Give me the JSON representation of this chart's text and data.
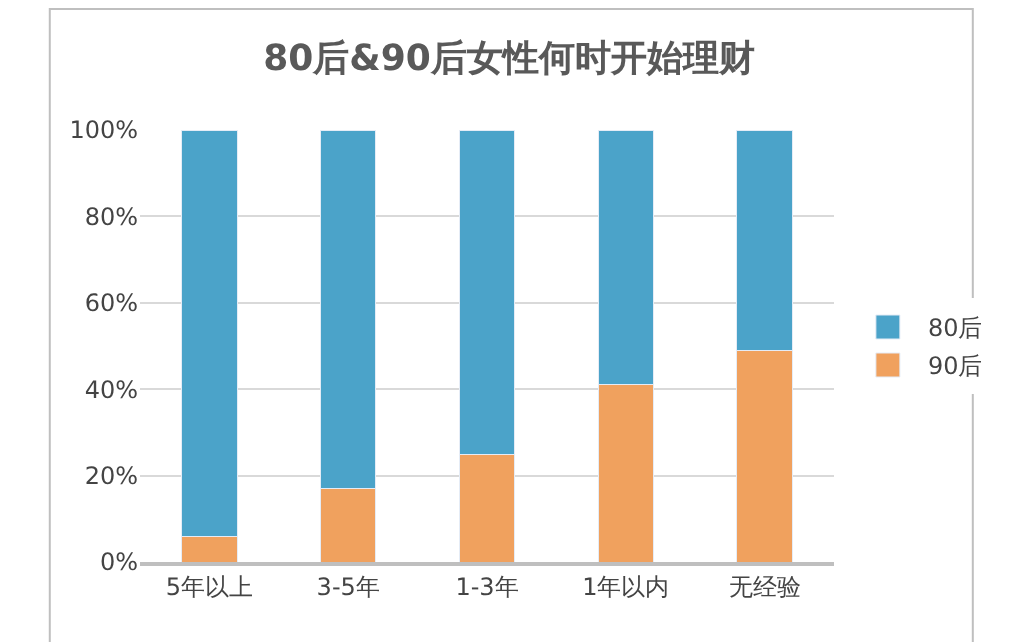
{
  "chart_data": {
    "type": "bar",
    "title": "80后&90后女性何时开始理财",
    "stacked": true,
    "categories": [
      "5年以上",
      "3-5年",
      "1-3年",
      "1年以内",
      "无经验"
    ],
    "series": [
      {
        "name": "90后",
        "color": "#f0a15e",
        "values": [
          6,
          17,
          25,
          41,
          49
        ]
      },
      {
        "name": "80后",
        "color": "#4ba3c9",
        "values": [
          94,
          83,
          75,
          59,
          51
        ]
      }
    ],
    "ylim": [
      0,
      100
    ],
    "yticks": [
      {
        "value": 0,
        "label": "0%"
      },
      {
        "value": 20,
        "label": "20%"
      },
      {
        "value": 40,
        "label": "40%"
      },
      {
        "value": 60,
        "label": "60%"
      },
      {
        "value": 80,
        "label": "80%"
      },
      {
        "value": 100,
        "label": "100%"
      }
    ],
    "grid": "y",
    "legend": "right"
  }
}
